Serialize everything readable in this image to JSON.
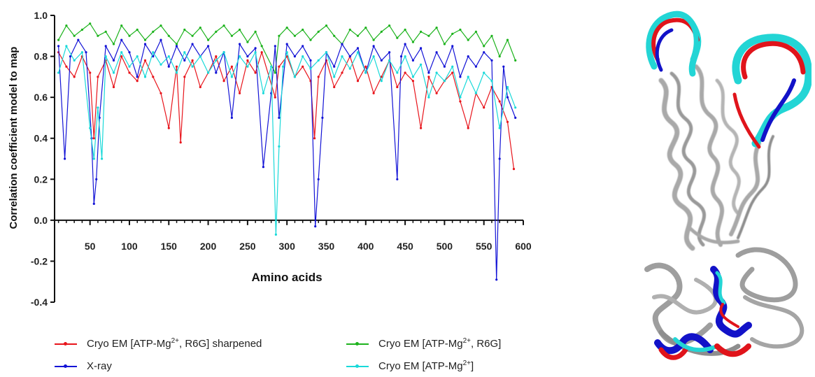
{
  "chart_data": {
    "type": "line",
    "title": "",
    "xlabel": "Amino acids",
    "ylabel": "Correlation coefficient model to map",
    "xlim": [
      5,
      600
    ],
    "ylim": [
      -0.4,
      1.0
    ],
    "xticks": [
      50,
      100,
      150,
      200,
      250,
      300,
      350,
      400,
      450,
      500,
      550,
      600
    ],
    "yticks": [
      -0.4,
      -0.2,
      0.0,
      0.2,
      0.4,
      0.6,
      0.8,
      1.0
    ],
    "ytick_labels": [
      "-0.4",
      "-0.2",
      "0.0",
      "0.2",
      "0.4",
      "0.6",
      "0.8",
      "1.0"
    ],
    "grid": false,
    "legend_position": "bottom",
    "series": [
      {
        "name": "Cryo EM [ATP-Mg2+, R6G]",
        "label_main": "Cryo EM [ATP-Mg",
        "label_sup": "2+",
        "label_tail": ", R6G]",
        "color": "#1db31d",
        "points": [
          [
            10,
            0.88
          ],
          [
            20,
            0.95
          ],
          [
            30,
            0.9
          ],
          [
            40,
            0.93
          ],
          [
            50,
            0.96
          ],
          [
            60,
            0.9
          ],
          [
            70,
            0.92
          ],
          [
            80,
            0.86
          ],
          [
            90,
            0.95
          ],
          [
            100,
            0.9
          ],
          [
            110,
            0.93
          ],
          [
            120,
            0.88
          ],
          [
            130,
            0.92
          ],
          [
            140,
            0.95
          ],
          [
            150,
            0.9
          ],
          [
            160,
            0.86
          ],
          [
            170,
            0.93
          ],
          [
            180,
            0.9
          ],
          [
            190,
            0.94
          ],
          [
            200,
            0.88
          ],
          [
            210,
            0.92
          ],
          [
            220,
            0.95
          ],
          [
            230,
            0.9
          ],
          [
            240,
            0.93
          ],
          [
            250,
            0.87
          ],
          [
            260,
            0.92
          ],
          [
            268,
            0.85
          ],
          [
            285,
            0.72
          ],
          [
            290,
            0.9
          ],
          [
            300,
            0.94
          ],
          [
            310,
            0.9
          ],
          [
            320,
            0.93
          ],
          [
            330,
            0.88
          ],
          [
            340,
            0.92
          ],
          [
            350,
            0.95
          ],
          [
            360,
            0.9
          ],
          [
            370,
            0.86
          ],
          [
            380,
            0.93
          ],
          [
            390,
            0.9
          ],
          [
            400,
            0.94
          ],
          [
            410,
            0.88
          ],
          [
            420,
            0.92
          ],
          [
            430,
            0.95
          ],
          [
            440,
            0.89
          ],
          [
            450,
            0.93
          ],
          [
            460,
            0.87
          ],
          [
            470,
            0.92
          ],
          [
            480,
            0.9
          ],
          [
            490,
            0.94
          ],
          [
            500,
            0.86
          ],
          [
            510,
            0.91
          ],
          [
            520,
            0.93
          ],
          [
            530,
            0.88
          ],
          [
            540,
            0.92
          ],
          [
            550,
            0.85
          ],
          [
            560,
            0.9
          ],
          [
            570,
            0.8
          ],
          [
            580,
            0.88
          ],
          [
            590,
            0.78
          ]
        ]
      },
      {
        "name": "Cryo EM [ATP-Mg2+, R6G] sharpened",
        "label_main": "Cryo EM [ATP-Mg",
        "label_sup": "2+",
        "label_tail": ", R6G] sharpened",
        "color": "#e8141b",
        "points": [
          [
            10,
            0.82
          ],
          [
            20,
            0.75
          ],
          [
            30,
            0.7
          ],
          [
            40,
            0.8
          ],
          [
            50,
            0.72
          ],
          [
            55,
            0.4
          ],
          [
            60,
            0.7
          ],
          [
            70,
            0.78
          ],
          [
            80,
            0.65
          ],
          [
            90,
            0.8
          ],
          [
            100,
            0.72
          ],
          [
            110,
            0.68
          ],
          [
            120,
            0.78
          ],
          [
            130,
            0.7
          ],
          [
            140,
            0.62
          ],
          [
            150,
            0.45
          ],
          [
            160,
            0.75
          ],
          [
            165,
            0.38
          ],
          [
            170,
            0.7
          ],
          [
            180,
            0.78
          ],
          [
            190,
            0.65
          ],
          [
            200,
            0.72
          ],
          [
            210,
            0.8
          ],
          [
            220,
            0.68
          ],
          [
            230,
            0.75
          ],
          [
            240,
            0.62
          ],
          [
            250,
            0.78
          ],
          [
            260,
            0.72
          ],
          [
            268,
            0.82
          ],
          [
            285,
            0.6
          ],
          [
            290,
            0.75
          ],
          [
            300,
            0.8
          ],
          [
            310,
            0.7
          ],
          [
            320,
            0.75
          ],
          [
            330,
            0.68
          ],
          [
            335,
            0.4
          ],
          [
            340,
            0.7
          ],
          [
            350,
            0.78
          ],
          [
            360,
            0.65
          ],
          [
            370,
            0.72
          ],
          [
            380,
            0.8
          ],
          [
            390,
            0.68
          ],
          [
            400,
            0.75
          ],
          [
            410,
            0.62
          ],
          [
            420,
            0.7
          ],
          [
            430,
            0.78
          ],
          [
            440,
            0.65
          ],
          [
            450,
            0.72
          ],
          [
            460,
            0.68
          ],
          [
            470,
            0.45
          ],
          [
            480,
            0.7
          ],
          [
            490,
            0.62
          ],
          [
            500,
            0.68
          ],
          [
            510,
            0.72
          ],
          [
            520,
            0.58
          ],
          [
            530,
            0.45
          ],
          [
            540,
            0.62
          ],
          [
            550,
            0.55
          ],
          [
            560,
            0.65
          ],
          [
            570,
            0.58
          ],
          [
            580,
            0.48
          ],
          [
            588,
            0.25
          ]
        ]
      },
      {
        "name": "X-ray",
        "label_main": "X-ray",
        "label_sup": "",
        "label_tail": "",
        "color": "#1313d6",
        "points": [
          [
            10,
            0.85
          ],
          [
            18,
            0.3
          ],
          [
            25,
            0.8
          ],
          [
            35,
            0.88
          ],
          [
            45,
            0.82
          ],
          [
            52,
            0.4
          ],
          [
            55,
            0.08
          ],
          [
            58,
            0.2
          ],
          [
            62,
            0.5
          ],
          [
            70,
            0.85
          ],
          [
            80,
            0.78
          ],
          [
            90,
            0.88
          ],
          [
            100,
            0.82
          ],
          [
            110,
            0.7
          ],
          [
            120,
            0.86
          ],
          [
            130,
            0.8
          ],
          [
            140,
            0.88
          ],
          [
            150,
            0.75
          ],
          [
            160,
            0.85
          ],
          [
            170,
            0.78
          ],
          [
            180,
            0.86
          ],
          [
            190,
            0.8
          ],
          [
            200,
            0.85
          ],
          [
            210,
            0.72
          ],
          [
            220,
            0.82
          ],
          [
            230,
            0.5
          ],
          [
            240,
            0.86
          ],
          [
            250,
            0.8
          ],
          [
            260,
            0.84
          ],
          [
            270,
            0.26
          ],
          [
            280,
            0.62
          ],
          [
            285,
            0.85
          ],
          [
            290,
            0.5
          ],
          [
            300,
            0.86
          ],
          [
            310,
            0.8
          ],
          [
            320,
            0.85
          ],
          [
            330,
            0.78
          ],
          [
            336,
            -0.03
          ],
          [
            340,
            0.2
          ],
          [
            345,
            0.5
          ],
          [
            350,
            0.82
          ],
          [
            360,
            0.75
          ],
          [
            370,
            0.86
          ],
          [
            380,
            0.8
          ],
          [
            390,
            0.84
          ],
          [
            400,
            0.72
          ],
          [
            410,
            0.85
          ],
          [
            420,
            0.78
          ],
          [
            430,
            0.82
          ],
          [
            440,
            0.2
          ],
          [
            445,
            0.8
          ],
          [
            450,
            0.86
          ],
          [
            460,
            0.78
          ],
          [
            470,
            0.84
          ],
          [
            480,
            0.72
          ],
          [
            490,
            0.82
          ],
          [
            500,
            0.75
          ],
          [
            510,
            0.85
          ],
          [
            520,
            0.7
          ],
          [
            530,
            0.8
          ],
          [
            540,
            0.75
          ],
          [
            550,
            0.82
          ],
          [
            560,
            0.78
          ],
          [
            566,
            -0.29
          ],
          [
            570,
            0.3
          ],
          [
            575,
            0.75
          ],
          [
            580,
            0.6
          ],
          [
            590,
            0.5
          ]
        ]
      },
      {
        "name": "Cryo EM [ATP-Mg2+]",
        "label_main": "Cryo EM [ATP-Mg",
        "label_sup": "2+",
        "label_tail": "]",
        "color": "#19d9d9",
        "points": [
          [
            10,
            0.72
          ],
          [
            20,
            0.85
          ],
          [
            30,
            0.78
          ],
          [
            40,
            0.82
          ],
          [
            50,
            0.45
          ],
          [
            55,
            0.3
          ],
          [
            60,
            0.55
          ],
          [
            65,
            0.3
          ],
          [
            70,
            0.8
          ],
          [
            80,
            0.72
          ],
          [
            90,
            0.82
          ],
          [
            100,
            0.75
          ],
          [
            110,
            0.8
          ],
          [
            120,
            0.7
          ],
          [
            130,
            0.82
          ],
          [
            140,
            0.76
          ],
          [
            150,
            0.8
          ],
          [
            160,
            0.72
          ],
          [
            170,
            0.82
          ],
          [
            180,
            0.75
          ],
          [
            190,
            0.8
          ],
          [
            200,
            0.72
          ],
          [
            210,
            0.78
          ],
          [
            220,
            0.82
          ],
          [
            230,
            0.7
          ],
          [
            240,
            0.8
          ],
          [
            250,
            0.75
          ],
          [
            260,
            0.82
          ],
          [
            270,
            0.62
          ],
          [
            280,
            0.75
          ],
          [
            286,
            -0.07
          ],
          [
            290,
            0.36
          ],
          [
            295,
            0.75
          ],
          [
            300,
            0.82
          ],
          [
            310,
            0.7
          ],
          [
            320,
            0.8
          ],
          [
            330,
            0.74
          ],
          [
            340,
            0.78
          ],
          [
            350,
            0.82
          ],
          [
            360,
            0.7
          ],
          [
            370,
            0.8
          ],
          [
            380,
            0.74
          ],
          [
            390,
            0.82
          ],
          [
            400,
            0.72
          ],
          [
            410,
            0.8
          ],
          [
            420,
            0.68
          ],
          [
            430,
            0.78
          ],
          [
            440,
            0.72
          ],
          [
            450,
            0.8
          ],
          [
            460,
            0.7
          ],
          [
            470,
            0.76
          ],
          [
            480,
            0.6
          ],
          [
            490,
            0.72
          ],
          [
            500,
            0.68
          ],
          [
            510,
            0.75
          ],
          [
            520,
            0.6
          ],
          [
            530,
            0.7
          ],
          [
            540,
            0.62
          ],
          [
            550,
            0.72
          ],
          [
            560,
            0.68
          ],
          [
            570,
            0.45
          ],
          [
            580,
            0.65
          ],
          [
            590,
            0.55
          ]
        ]
      }
    ]
  },
  "legend": {
    "placement": "bottom",
    "order": [
      1,
      2,
      0,
      3
    ]
  },
  "structure_panel": {
    "colors": {
      "backbone": "#a9a9a9",
      "red": "#e0141b",
      "blue": "#1212c8",
      "cyan": "#23d5d5"
    }
  }
}
